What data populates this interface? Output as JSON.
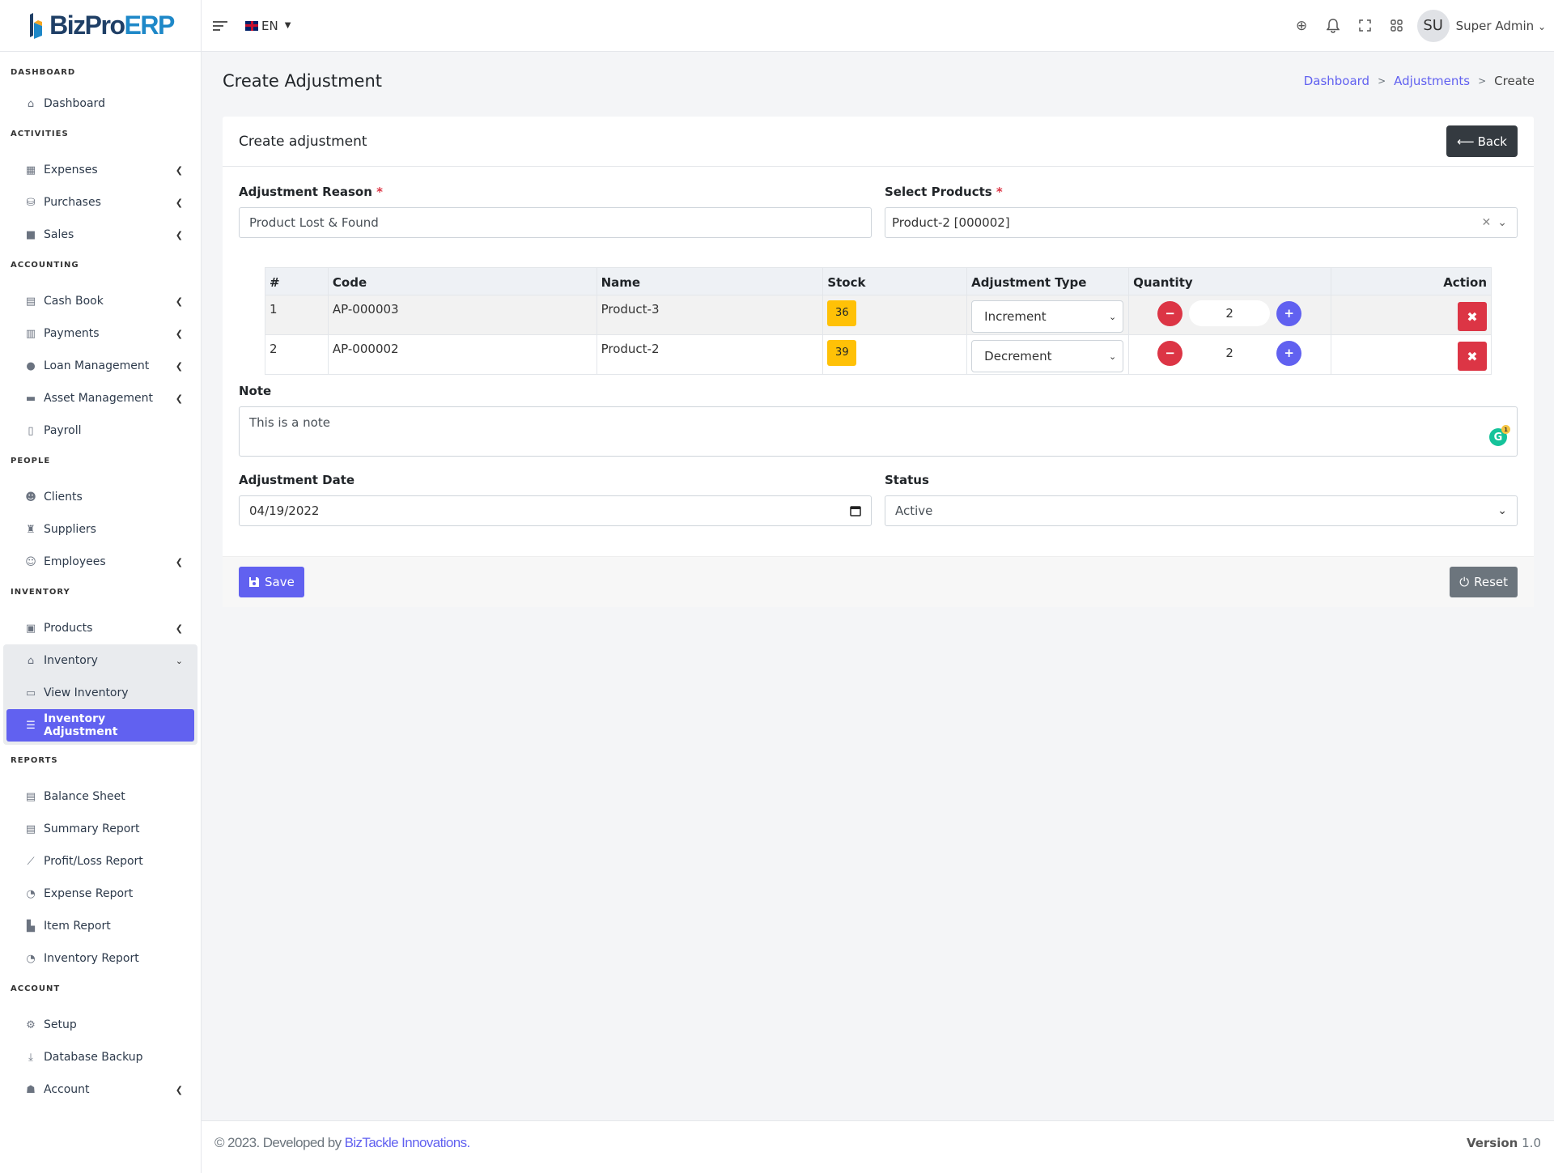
{
  "brand": {
    "name_part1": "BizPro",
    "name_part2": "ERP"
  },
  "topbar": {
    "language": "EN",
    "user_initials": "SU",
    "user_name": "Super Admin"
  },
  "sidebar": {
    "sections": {
      "dashboard": "DASHBOARD",
      "activities": "ACTIVITIES",
      "accounting": "ACCOUNTING",
      "people": "PEOPLE",
      "inventory": "INVENTORY",
      "reports": "REPORTS",
      "account": "ACCOUNT"
    },
    "items": {
      "dashboard": "Dashboard",
      "expenses": "Expenses",
      "purchases": "Purchases",
      "sales": "Sales",
      "cash_book": "Cash Book",
      "payments": "Payments",
      "loan_management": "Loan Management",
      "asset_management": "Asset Management",
      "payroll": "Payroll",
      "clients": "Clients",
      "suppliers": "Suppliers",
      "employees": "Employees",
      "products": "Products",
      "inventory": "Inventory",
      "view_inventory": "View Inventory",
      "inventory_adjustment": "Inventory Adjustment",
      "balance_sheet": "Balance Sheet",
      "summary_report": "Summary Report",
      "profit_loss_report": "Profit/Loss Report",
      "expense_report": "Expense Report",
      "item_report": "Item Report",
      "inventory_report": "Inventory Report",
      "setup": "Setup",
      "database_backup": "Database Backup",
      "account": "Account"
    }
  },
  "page": {
    "title": "Create Adjustment",
    "breadcrumb": [
      "Dashboard",
      "Adjustments",
      "Create"
    ]
  },
  "card": {
    "title": "Create adjustment",
    "back_label": "Back"
  },
  "form": {
    "reason_label": "Adjustment Reason",
    "reason_value": "Product Lost & Found",
    "products_label": "Select Products",
    "products_value": "Product-2 [000002]",
    "note_label": "Note",
    "note_value": "This is a note",
    "date_label": "Adjustment Date",
    "date_value": "04/19/2022",
    "status_label": "Status",
    "status_value": "Active",
    "save_label": "Save",
    "reset_label": "Reset",
    "required_mark": "*"
  },
  "table": {
    "headers": [
      "#",
      "Code",
      "Name",
      "Stock",
      "Adjustment Type",
      "Quantity",
      "Action"
    ],
    "rows": [
      {
        "index": "1",
        "code": "AP-000003",
        "name": "Product-3",
        "stock": "36",
        "type": "Increment",
        "quantity": "2"
      },
      {
        "index": "2",
        "code": "AP-000002",
        "name": "Product-2",
        "stock": "39",
        "type": "Decrement",
        "quantity": "2"
      }
    ]
  },
  "footer": {
    "copyright_prefix": "© 2023. Developed by",
    "company": "BizTackle Innovations.",
    "version_label": "Version",
    "version_number": "1.0"
  },
  "colors": {
    "accent": "#6161f0",
    "danger": "#dc3545",
    "warning": "#ffc107",
    "dark": "#343a40",
    "secondary": "#6c757d"
  }
}
